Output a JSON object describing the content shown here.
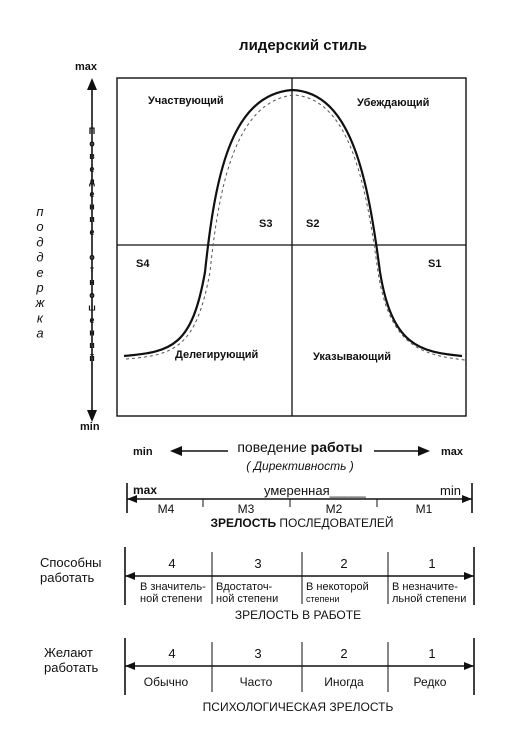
{
  "title": "лидерский стиль",
  "y_axis": {
    "max_label": "max",
    "min_label": "min",
    "inner_label_letters": [
      "П",
      "о",
      "в",
      "е",
      "д",
      "е",
      "н",
      "и",
      "е",
      "",
      "о",
      "т",
      "н",
      "о",
      "ш",
      "е",
      "н",
      "и",
      "й"
    ],
    "outer_label_letters": [
      "п",
      "о",
      "д",
      "д",
      "е",
      "р",
      "ж",
      "к",
      "а"
    ]
  },
  "quadrants": {
    "participating": "Участвующий",
    "selling": "Убеждающий",
    "delegating": "Делегирующий",
    "telling": "Указывающий",
    "s1": "S1",
    "s2": "S2",
    "s3": "S3",
    "s4": "S4"
  },
  "x_axis": {
    "min_label": "min",
    "max_label": "max",
    "label_prefix": "поведение ",
    "label_bold": "работы",
    "sublabel": "( Директивность )"
  },
  "follower_maturity": {
    "max_label": "max",
    "moderate_label": "умеренная_____",
    "min_label": "min",
    "stages": [
      "M4",
      "M3",
      "M2",
      "M1"
    ],
    "caption_bold": "ЗРЕЛОСТЬ",
    "caption_rest": " ПОСЛЕДОВАТЕЛЕЙ"
  },
  "job_maturity": {
    "row_label": [
      "Способны",
      "работать"
    ],
    "numbers": [
      "4",
      "3",
      "2",
      "1"
    ],
    "descriptions": [
      [
        "В значитель-",
        "ной степени"
      ],
      [
        "Вдостаточ-",
        "ной степени"
      ],
      [
        "В некоторой",
        "степени"
      ],
      [
        "В незначите-",
        "льной степени"
      ]
    ],
    "caption": "ЗРЕЛОСТЬ В РАБОТЕ"
  },
  "psych_maturity": {
    "row_label": [
      "Желают",
      "работать"
    ],
    "numbers": [
      "4",
      "3",
      "2",
      "1"
    ],
    "descriptions": [
      "Обычно",
      "Часто",
      "Иногда",
      "Редко"
    ],
    "caption": "ПСИХОЛОГИЧЕСКАЯ ЗРЕЛОСТЬ"
  }
}
